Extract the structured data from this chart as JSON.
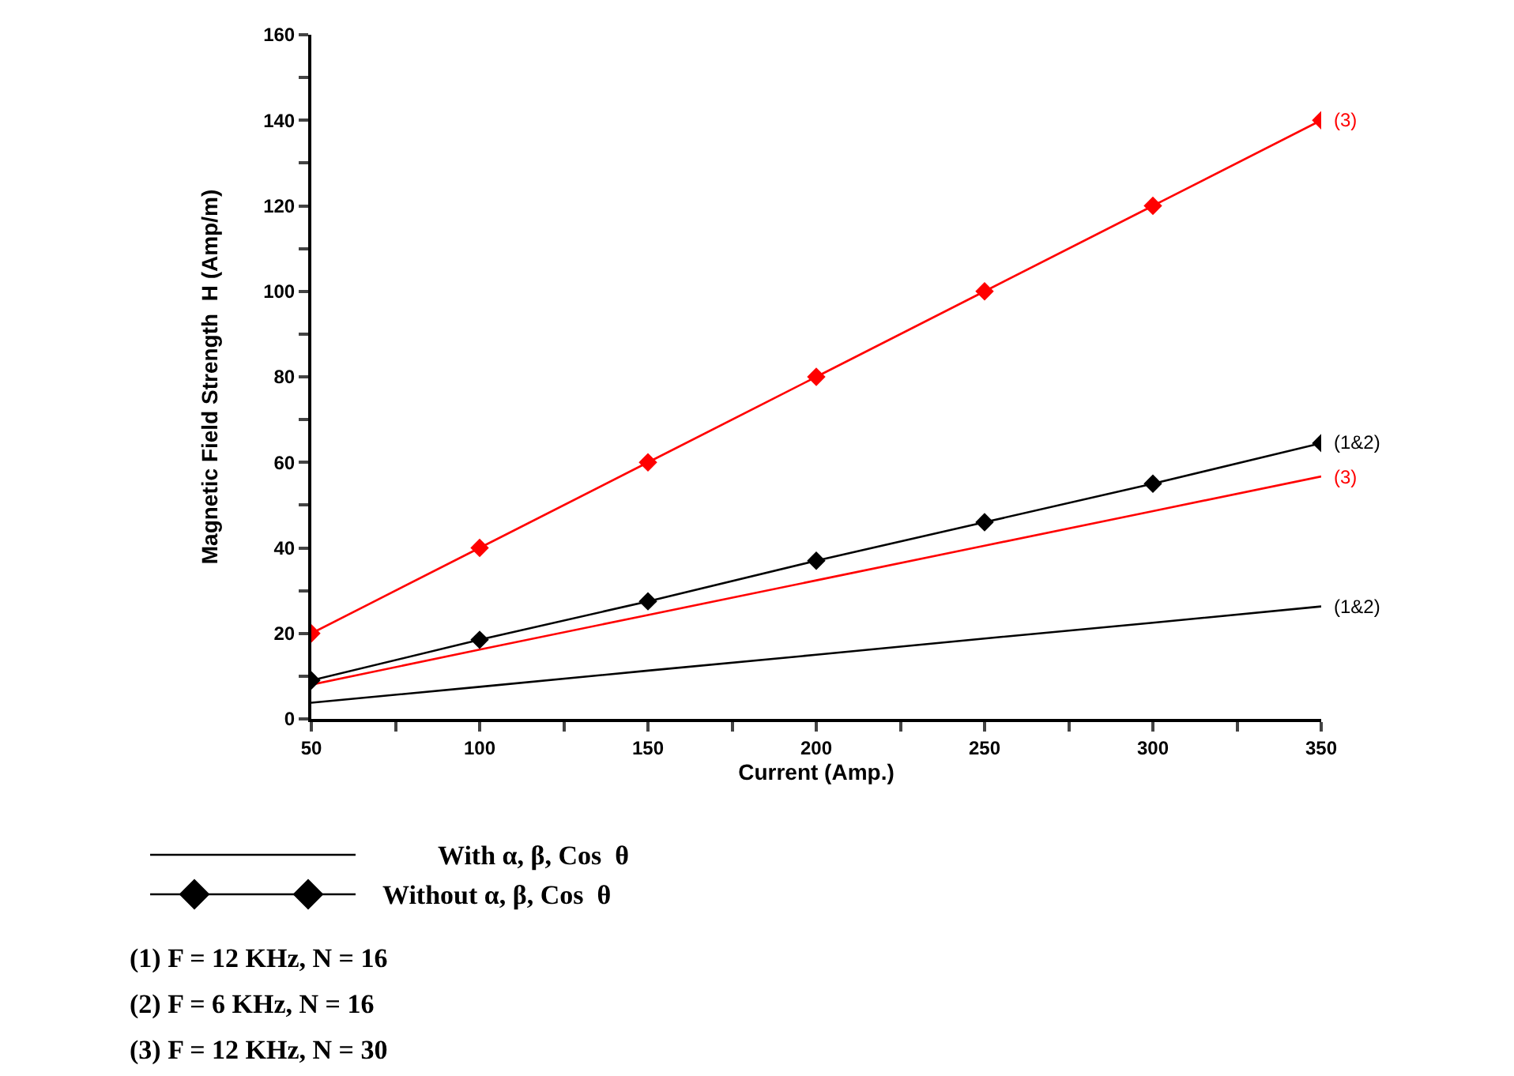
{
  "chart_data": {
    "type": "line",
    "xlabel": "Current (Amp.)",
    "ylabel": "Magnetic Field Strength  H (Amp/m)",
    "x": [
      50,
      100,
      150,
      200,
      250,
      300,
      350
    ],
    "series": [
      {
        "name": "(3)",
        "color": "#ff0000",
        "marker": "none",
        "values": [
          8,
          16.2,
          24.3,
          32.4,
          40.5,
          48.6,
          56.7
        ]
      },
      {
        "name": "(1&2)",
        "color": "#000000",
        "marker": "none",
        "values": [
          3.8,
          7.5,
          11.3,
          15,
          18.8,
          22.5,
          26.3
        ]
      },
      {
        "name": "(3)",
        "color": "#ff0000",
        "marker": "diamond",
        "values": [
          20,
          40,
          60,
          80,
          100,
          120,
          140
        ]
      },
      {
        "name": "(1&2)",
        "color": "#000000",
        "marker": "diamond",
        "values": [
          9,
          18.5,
          27.5,
          37,
          46,
          55,
          64.5
        ]
      }
    ],
    "xlim": [
      50,
      350
    ],
    "xticks": [
      50,
      {
        "value": 75,
        "label": null
      },
      100,
      {
        "value": 125,
        "label": null
      },
      150,
      {
        "value": 175,
        "label": null
      },
      200,
      {
        "value": 225,
        "label": null
      },
      250,
      {
        "value": 275,
        "label": null
      },
      300,
      {
        "value": 325,
        "label": null
      },
      350
    ],
    "ylim": [
      0,
      160
    ],
    "yticks": [
      0,
      {
        "value": 10,
        "label": null
      },
      20,
      {
        "value": 30,
        "label": null
      },
      40,
      {
        "value": 50,
        "label": null
      },
      60,
      {
        "value": 70,
        "label": null
      },
      80,
      {
        "value": 90,
        "label": null
      },
      100,
      {
        "value": 110,
        "label": null
      },
      120,
      {
        "value": 130,
        "label": null
      },
      140,
      {
        "value": 150,
        "label": null
      },
      160
    ],
    "legend": false,
    "line_style": "solid",
    "annotations": [
      "With α, β, Cos  θ",
      "Without α, β, Cos  θ",
      "(1) F = 12 KHz, N = 16",
      "(2) F = 6 KHz, N = 16",
      "(3) F = 12 KHz, N = 30"
    ]
  }
}
